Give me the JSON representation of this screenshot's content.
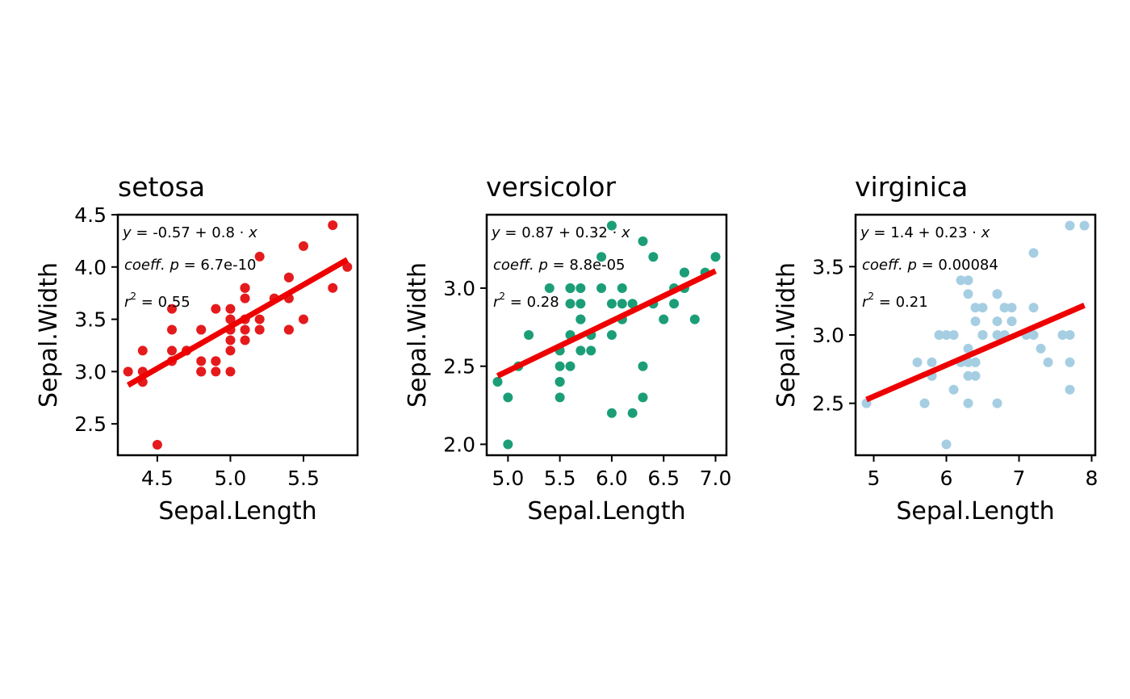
{
  "chart_data": [
    {
      "type": "scatter",
      "title": "setosa",
      "xlabel": "Sepal.Length",
      "ylabel": "Sepal.Width",
      "xlim": [
        4.23,
        5.87
      ],
      "ylim": [
        2.2,
        4.5
      ],
      "xticks": [
        4.5,
        5.0,
        5.5
      ],
      "xtick_labels": [
        "4.5",
        "5.0",
        "5.5"
      ],
      "yticks": [
        2.5,
        3.0,
        3.5,
        4.0,
        4.5
      ],
      "ytick_labels": [
        "2.5",
        "3.0",
        "3.5",
        "4.0",
        "4.5"
      ],
      "point_color": "#e41a1c",
      "line_color": "#ee0000",
      "fit": {
        "intercept": -0.57,
        "slope": 0.8,
        "x_range": [
          4.3,
          5.8
        ]
      },
      "annotations": {
        "eq_y": "y",
        "eq_intercept": "-0.57",
        "eq_slope": "0.8",
        "eq_x": "x",
        "p_label": "coeff.",
        "p_var": "p",
        "p_value": "6.7e-10",
        "r_var": "r",
        "r_exp": "2",
        "r_value": "0.55"
      },
      "points": [
        [
          5.1,
          3.5
        ],
        [
          4.9,
          3.0
        ],
        [
          4.7,
          3.2
        ],
        [
          4.6,
          3.1
        ],
        [
          5.0,
          3.6
        ],
        [
          5.4,
          3.9
        ],
        [
          4.6,
          3.4
        ],
        [
          5.0,
          3.4
        ],
        [
          4.4,
          2.9
        ],
        [
          4.9,
          3.1
        ],
        [
          5.4,
          3.7
        ],
        [
          4.8,
          3.4
        ],
        [
          4.8,
          3.0
        ],
        [
          4.3,
          3.0
        ],
        [
          5.8,
          4.0
        ],
        [
          5.7,
          4.4
        ],
        [
          5.4,
          3.9
        ],
        [
          5.1,
          3.5
        ],
        [
          5.7,
          3.8
        ],
        [
          5.1,
          3.8
        ],
        [
          5.4,
          3.4
        ],
        [
          5.1,
          3.7
        ],
        [
          4.6,
          3.6
        ],
        [
          5.1,
          3.3
        ],
        [
          4.8,
          3.4
        ],
        [
          5.0,
          3.0
        ],
        [
          5.0,
          3.4
        ],
        [
          5.2,
          3.5
        ],
        [
          5.2,
          3.4
        ],
        [
          4.7,
          3.2
        ],
        [
          4.8,
          3.1
        ],
        [
          5.4,
          3.4
        ],
        [
          5.2,
          4.1
        ],
        [
          5.5,
          4.2
        ],
        [
          4.9,
          3.1
        ],
        [
          5.0,
          3.2
        ],
        [
          5.5,
          3.5
        ],
        [
          4.9,
          3.6
        ],
        [
          4.4,
          3.0
        ],
        [
          5.1,
          3.4
        ],
        [
          5.0,
          3.5
        ],
        [
          4.5,
          2.3
        ],
        [
          4.4,
          3.2
        ],
        [
          5.0,
          3.5
        ],
        [
          5.1,
          3.8
        ],
        [
          4.8,
          3.0
        ],
        [
          5.1,
          3.8
        ],
        [
          4.6,
          3.2
        ],
        [
          5.3,
          3.7
        ],
        [
          5.0,
          3.3
        ]
      ]
    },
    {
      "type": "scatter",
      "title": "versicolor",
      "xlabel": "Sepal.Length",
      "ylabel": "Sepal.Width",
      "xlim": [
        4.795,
        7.105
      ],
      "ylim": [
        1.93,
        3.47
      ],
      "xticks": [
        5.0,
        5.5,
        6.0,
        6.5,
        7.0
      ],
      "xtick_labels": [
        "5.0",
        "5.5",
        "6.0",
        "6.5",
        "7.0"
      ],
      "yticks": [
        2.0,
        2.5,
        3.0
      ],
      "ytick_labels": [
        "2.0",
        "2.5",
        "3.0"
      ],
      "point_color": "#1b9e77",
      "line_color": "#ee0000",
      "fit": {
        "intercept": 0.87,
        "slope": 0.32,
        "x_range": [
          4.9,
          7.0
        ]
      },
      "annotations": {
        "eq_y": "y",
        "eq_intercept": "0.87",
        "eq_slope": "0.32",
        "eq_x": "x",
        "p_label": "coeff.",
        "p_var": "p",
        "p_value": "8.8e-05",
        "r_var": "r",
        "r_exp": "2",
        "r_value": "0.28"
      },
      "points": [
        [
          7.0,
          3.2
        ],
        [
          6.4,
          3.2
        ],
        [
          6.9,
          3.1
        ],
        [
          5.5,
          2.3
        ],
        [
          6.5,
          2.8
        ],
        [
          5.7,
          2.8
        ],
        [
          6.3,
          3.3
        ],
        [
          4.9,
          2.4
        ],
        [
          6.6,
          2.9
        ],
        [
          5.2,
          2.7
        ],
        [
          5.0,
          2.0
        ],
        [
          5.9,
          3.0
        ],
        [
          6.0,
          2.2
        ],
        [
          6.1,
          2.9
        ],
        [
          5.6,
          2.9
        ],
        [
          6.7,
          3.1
        ],
        [
          5.6,
          3.0
        ],
        [
          5.8,
          2.7
        ],
        [
          6.2,
          2.2
        ],
        [
          5.6,
          2.5
        ],
        [
          5.9,
          3.2
        ],
        [
          6.1,
          2.8
        ],
        [
          6.3,
          2.5
        ],
        [
          6.1,
          2.8
        ],
        [
          6.4,
          2.9
        ],
        [
          6.6,
          3.0
        ],
        [
          6.8,
          2.8
        ],
        [
          6.7,
          3.0
        ],
        [
          6.0,
          2.9
        ],
        [
          5.7,
          2.6
        ],
        [
          5.5,
          2.4
        ],
        [
          5.5,
          2.4
        ],
        [
          5.8,
          2.7
        ],
        [
          6.0,
          2.7
        ],
        [
          5.4,
          3.0
        ],
        [
          6.0,
          3.4
        ],
        [
          6.7,
          3.1
        ],
        [
          6.3,
          2.3
        ],
        [
          5.6,
          3.0
        ],
        [
          5.5,
          2.5
        ],
        [
          5.5,
          2.6
        ],
        [
          6.1,
          3.0
        ],
        [
          5.8,
          2.6
        ],
        [
          5.0,
          2.3
        ],
        [
          5.6,
          2.7
        ],
        [
          5.7,
          3.0
        ],
        [
          5.7,
          2.9
        ],
        [
          6.2,
          2.9
        ],
        [
          5.1,
          2.5
        ],
        [
          5.7,
          2.8
        ]
      ]
    },
    {
      "type": "scatter",
      "title": "virginica",
      "xlabel": "Sepal.Length",
      "ylabel": "Sepal.Width",
      "xlim": [
        4.75,
        8.05
      ],
      "ylim": [
        2.12,
        3.88
      ],
      "xticks": [
        5,
        6,
        7,
        8
      ],
      "xtick_labels": [
        "5",
        "6",
        "7",
        "8"
      ],
      "yticks": [
        2.5,
        3.0,
        3.5
      ],
      "ytick_labels": [
        "2.5",
        "3.0",
        "3.5"
      ],
      "point_color": "#a6cee3",
      "line_color": "#ee0000",
      "fit": {
        "intercept": 1.4,
        "slope": 0.23,
        "x_range": [
          4.9,
          7.9
        ]
      },
      "annotations": {
        "eq_y": "y",
        "eq_intercept": "1.4",
        "eq_slope": "0.23",
        "eq_x": "x",
        "p_label": "coeff.",
        "p_var": "p",
        "p_value": "0.00084",
        "r_var": "r",
        "r_exp": "2",
        "r_value": "0.21"
      },
      "points": [
        [
          6.3,
          3.3
        ],
        [
          5.8,
          2.7
        ],
        [
          7.1,
          3.0
        ],
        [
          6.3,
          2.9
        ],
        [
          6.5,
          3.0
        ],
        [
          7.6,
          3.0
        ],
        [
          4.9,
          2.5
        ],
        [
          7.3,
          2.9
        ],
        [
          6.7,
          2.5
        ],
        [
          7.2,
          3.6
        ],
        [
          6.5,
          3.2
        ],
        [
          6.4,
          2.7
        ],
        [
          6.8,
          3.0
        ],
        [
          5.7,
          2.5
        ],
        [
          5.8,
          2.8
        ],
        [
          6.4,
          3.2
        ],
        [
          6.5,
          3.0
        ],
        [
          7.7,
          3.8
        ],
        [
          7.7,
          2.6
        ],
        [
          6.0,
          2.2
        ],
        [
          6.9,
          3.2
        ],
        [
          5.6,
          2.8
        ],
        [
          7.7,
          2.8
        ],
        [
          6.3,
          2.7
        ],
        [
          6.7,
          3.3
        ],
        [
          7.2,
          3.2
        ],
        [
          6.2,
          2.8
        ],
        [
          6.1,
          3.0
        ],
        [
          6.4,
          2.8
        ],
        [
          7.2,
          3.0
        ],
        [
          7.4,
          2.8
        ],
        [
          7.9,
          3.8
        ],
        [
          6.4,
          2.8
        ],
        [
          6.3,
          2.8
        ],
        [
          6.1,
          2.6
        ],
        [
          7.7,
          3.0
        ],
        [
          6.3,
          3.4
        ],
        [
          6.4,
          3.1
        ],
        [
          6.0,
          3.0
        ],
        [
          6.9,
          3.1
        ],
        [
          6.7,
          3.1
        ],
        [
          6.9,
          3.1
        ],
        [
          5.8,
          2.7
        ],
        [
          6.8,
          3.2
        ],
        [
          6.7,
          3.3
        ],
        [
          6.7,
          3.0
        ],
        [
          6.3,
          2.5
        ],
        [
          6.5,
          3.0
        ],
        [
          6.2,
          3.4
        ],
        [
          5.9,
          3.0
        ]
      ]
    }
  ]
}
